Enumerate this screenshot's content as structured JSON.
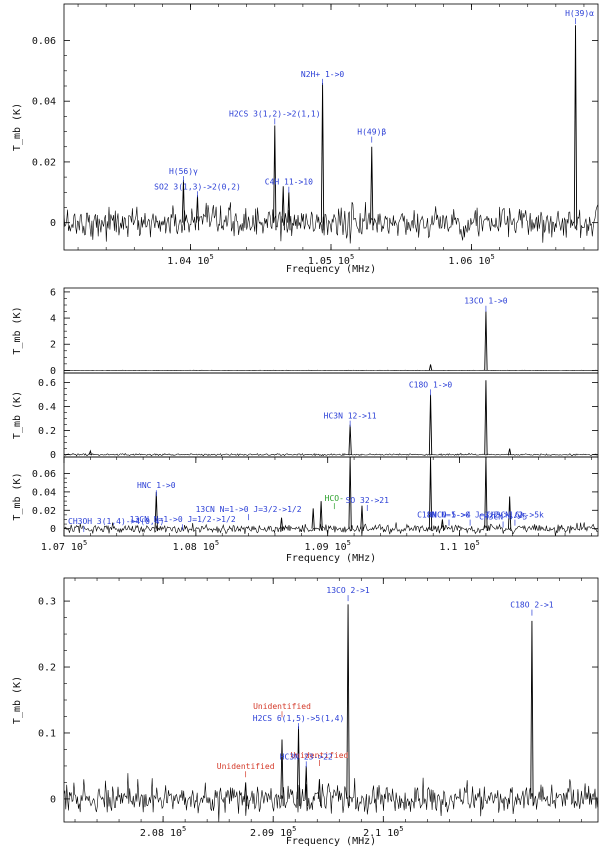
{
  "colors": {
    "blue": "#2b3fd6",
    "red": "#d43a2a",
    "green": "#2ca02c",
    "black": "#000000"
  },
  "chart_data": [
    {
      "type": "line",
      "xlabel": "Frequency (MHz)",
      "ylabel": "T_mb (K)",
      "xlim": [
        103100,
        106900
      ],
      "ylim": [
        -0.009,
        0.072
      ],
      "xticks": [
        104000,
        105000,
        106000
      ],
      "xtick_labels": [
        "1.04 10^5",
        "1.05 10^5",
        "1.06 10^5"
      ],
      "yticks": [
        0,
        0.02,
        0.04,
        0.06
      ],
      "ytick_labels": [
        "0",
        "0.02",
        "0.04",
        "0.06"
      ],
      "noise": 0.0025,
      "peaks": [
        {
          "x": 103950,
          "y": 0.014
        },
        {
          "x": 104050,
          "y": 0.009
        },
        {
          "x": 104600,
          "y": 0.032
        },
        {
          "x": 104660,
          "y": 0.012
        },
        {
          "x": 104700,
          "y": 0.01
        },
        {
          "x": 104940,
          "y": 0.046
        },
        {
          "x": 105290,
          "y": 0.025
        },
        {
          "x": 106740,
          "y": 0.065
        }
      ],
      "annotations": [
        {
          "text": "H(56)γ",
          "x": 103950,
          "y": 0.016,
          "color": "blue"
        },
        {
          "text": "SO2 3(1,3)->2(0,2)",
          "x": 104050,
          "y": 0.011,
          "color": "blue"
        },
        {
          "text": "H2CS 3(1,2)->2(1,1)",
          "x": 104600,
          "y": 0.035,
          "color": "blue"
        },
        {
          "text": "C4H 11->10",
          "x": 104700,
          "y": 0.0125,
          "color": "blue"
        },
        {
          "text": "N2H+ 1->0",
          "x": 104940,
          "y": 0.048,
          "color": "blue"
        },
        {
          "text": "H(49)β",
          "x": 105290,
          "y": 0.029,
          "color": "blue"
        },
        {
          "text": "H(39)α",
          "x": 106740,
          "y": 0.068,
          "color": "blue"
        }
      ]
    },
    {
      "type": "line",
      "xlabel": "",
      "ylabel": "T_mb (K)",
      "xlim": [
        107000,
        111050
      ],
      "ylim": [
        -0.2,
        6.3
      ],
      "yticks": [
        0,
        2,
        4,
        6
      ],
      "ytick_labels": [
        "0",
        "2",
        "4",
        "6"
      ],
      "noise": 0.006,
      "peaks": [
        {
          "x": 109780,
          "y": 0.45
        },
        {
          "x": 110200,
          "y": 4.5
        }
      ],
      "annotations": [
        {
          "text": "13CO 1->0",
          "x": 110200,
          "y": 5.1,
          "color": "blue"
        }
      ]
    },
    {
      "type": "line",
      "xlabel": "",
      "ylabel": "T_mb (K)",
      "xlim": [
        107000,
        111050
      ],
      "ylim": [
        -0.02,
        0.68
      ],
      "yticks": [
        0,
        0.2,
        0.4,
        0.6
      ],
      "ytick_labels": [
        "0",
        "0.2",
        "0.4",
        "0.6"
      ],
      "noise": 0.004,
      "peaks": [
        {
          "x": 107200,
          "y": 0.03
        },
        {
          "x": 109170,
          "y": 0.25
        },
        {
          "x": 109780,
          "y": 0.5
        },
        {
          "x": 110200,
          "y": 0.62
        },
        {
          "x": 110380,
          "y": 0.05
        }
      ],
      "annotations": [
        {
          "text": "C18O 1->0",
          "x": 109780,
          "y": 0.56,
          "color": "blue"
        },
        {
          "text": "HC3N 12->11",
          "x": 109170,
          "y": 0.3,
          "color": "blue"
        }
      ]
    },
    {
      "type": "line",
      "xlabel": "Frequency (MHz)",
      "ylabel": "T_mb (K)",
      "xlim": [
        107000,
        111050
      ],
      "ylim": [
        -0.008,
        0.078
      ],
      "xticks": [
        107000,
        108000,
        109000,
        110000
      ],
      "xtick_labels": [
        "1.07 10^5",
        "1.08 10^5",
        "1.09 10^5",
        "1.1 10^5"
      ],
      "yticks": [
        0,
        0.02,
        0.04,
        0.06
      ],
      "ytick_labels": [
        "0",
        "0.02",
        "0.04",
        "0.06"
      ],
      "noise": 0.0025,
      "peaks": [
        {
          "x": 107700,
          "y": 0.04
        },
        {
          "x": 108650,
          "y": 0.012
        },
        {
          "x": 108890,
          "y": 0.022
        },
        {
          "x": 108950,
          "y": 0.03
        },
        {
          "x": 109170,
          "y": 0.078
        },
        {
          "x": 109260,
          "y": 0.025
        },
        {
          "x": 109780,
          "y": 0.078
        },
        {
          "x": 109870,
          "y": 0.01
        },
        {
          "x": 110200,
          "y": 0.078
        },
        {
          "x": 110380,
          "y": 0.035
        }
      ],
      "annotations": [
        {
          "text": "HNC 1->0",
          "x": 107700,
          "y": 0.044,
          "color": "blue"
        },
        {
          "text": "13CN N=1->0 J=3/2->1/2",
          "x": 108400,
          "y": 0.018,
          "color": "blue"
        },
        {
          "text": "13CN N=1->0 J=1/2->1/2",
          "x": 107900,
          "y": 0.007,
          "color": "blue"
        },
        {
          "text": "CH3OH 3(1,4)->4(0,4)",
          "x": 107150,
          "y": 0.005,
          "color": "blue"
        },
        {
          "text": "HCO-",
          "x": 109050,
          "y": 0.03,
          "color": "green"
        },
        {
          "text": "SO 32->21",
          "x": 109300,
          "y": 0.028,
          "color": "blue"
        },
        {
          "text": "HNCO 5->4",
          "x": 109920,
          "y": 0.012,
          "color": "blue"
        },
        {
          "text": "C18N N=1->0 J=3/2->1/2",
          "x": 110080,
          "y": 0.012,
          "color": "blue"
        },
        {
          "text": "CH3CN 6->5",
          "x": 110330,
          "y": 0.01,
          "color": "blue"
        },
        {
          "text": "CH3CN 6k->5k",
          "x": 110420,
          "y": 0.012,
          "color": "blue"
        }
      ]
    },
    {
      "type": "line",
      "xlabel": "Frequency (MHz)",
      "ylabel": "T_mb (K)",
      "xlim": [
        207100,
        211950
      ],
      "ylim": [
        -0.035,
        0.335
      ],
      "xticks": [
        208000,
        209000,
        210000
      ],
      "xtick_labels": [
        "2.08 10^5",
        "2.09 10^5",
        "2.1 10^5"
      ],
      "yticks": [
        0,
        0.1,
        0.2,
        0.3
      ],
      "ytick_labels": [
        "0",
        "0.1",
        "0.2",
        "0.3"
      ],
      "noise": 0.011,
      "peaks": [
        {
          "x": 208750,
          "y": 0.025
        },
        {
          "x": 209080,
          "y": 0.09
        },
        {
          "x": 209230,
          "y": 0.11
        },
        {
          "x": 209300,
          "y": 0.05
        },
        {
          "x": 209420,
          "y": 0.03
        },
        {
          "x": 209680,
          "y": 0.295
        },
        {
          "x": 211350,
          "y": 0.27
        }
      ],
      "annotations": [
        {
          "text": "Unidentified",
          "x": 208750,
          "y": 0.045,
          "color": "red"
        },
        {
          "text": "Unidentified",
          "x": 209080,
          "y": 0.136,
          "color": "red"
        },
        {
          "text": "Unidentified",
          "x": 209420,
          "y": 0.062,
          "color": "red"
        },
        {
          "text": "H2CS 6(1,5)->5(1,4)",
          "x": 209230,
          "y": 0.118,
          "color": "blue"
        },
        {
          "text": "HC3N 23->22",
          "x": 209300,
          "y": 0.06,
          "color": "blue"
        },
        {
          "text": "13CO 2->1",
          "x": 209680,
          "y": 0.312,
          "color": "blue"
        },
        {
          "text": "C18O 2->1",
          "x": 211350,
          "y": 0.29,
          "color": "blue"
        }
      ]
    }
  ]
}
